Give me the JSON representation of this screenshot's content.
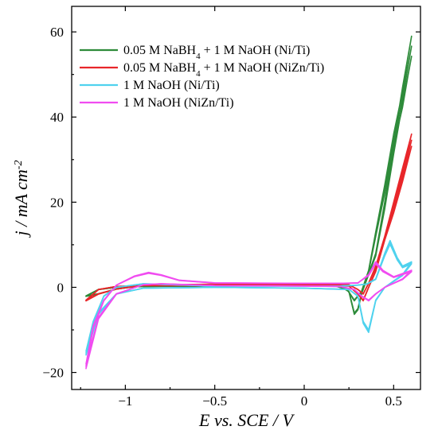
{
  "chart_data": {
    "type": "line",
    "title": "",
    "xlabel": "E vs. SCE / V",
    "ylabel": "j / mA cm",
    "ylabel_sup": "-2",
    "xlim": [
      -1.3,
      0.65
    ],
    "ylim": [
      -24,
      66
    ],
    "x_ticks": [
      -1,
      -0.5,
      0,
      0.5
    ],
    "x_tick_labels": [
      "−1",
      "−0.5",
      "0",
      "0.5"
    ],
    "y_ticks": [
      -20,
      0,
      20,
      40,
      60
    ],
    "y_tick_labels": [
      "−20",
      "0",
      "20",
      "40",
      "60"
    ],
    "grid": false,
    "legend_placement": "top-left",
    "series": [
      {
        "name": "0.05 M NaBH4 + 1 M NaOH (Ni/Ti)",
        "legend_parts": [
          "0.05 M NaBH",
          "4",
          " + 1 M NaOH (Ni/Ti)"
        ],
        "color": "#2e8b3a",
        "forward": [
          [
            -1.22,
            -2
          ],
          [
            -1.15,
            -0.5
          ],
          [
            -1.05,
            0
          ],
          [
            -0.9,
            0.2
          ],
          [
            -0.5,
            0.3
          ],
          [
            0,
            0.4
          ],
          [
            0.2,
            0.3
          ],
          [
            0.25,
            -1
          ],
          [
            0.28,
            -6
          ],
          [
            0.3,
            -5
          ],
          [
            0.32,
            -1.5
          ],
          [
            0.35,
            2
          ],
          [
            0.4,
            8
          ],
          [
            0.45,
            20
          ],
          [
            0.5,
            34
          ],
          [
            0.55,
            47
          ],
          [
            0.6,
            59
          ]
        ],
        "backward": [
          [
            0.6,
            59
          ],
          [
            0.58,
            54
          ],
          [
            0.55,
            46
          ],
          [
            0.5,
            36
          ],
          [
            0.45,
            24
          ],
          [
            0.4,
            13
          ],
          [
            0.36,
            4
          ],
          [
            0.32,
            -1
          ],
          [
            0.28,
            -3
          ],
          [
            0.24,
            -0.5
          ],
          [
            0.15,
            0.6
          ],
          [
            -0.5,
            0.6
          ],
          [
            -0.9,
            0.4
          ],
          [
            -1.05,
            -0.4
          ],
          [
            -1.15,
            -1.5
          ],
          [
            -1.22,
            -2
          ]
        ]
      },
      {
        "name": "0.05 M NaBH4 + 1 M NaOH (NiZn/Ti)",
        "legend_parts": [
          "0.05 M NaBH",
          "4",
          " + 1 M NaOH (NiZn/Ti)"
        ],
        "color": "#e8262a",
        "forward": [
          [
            -1.22,
            -3
          ],
          [
            -1.15,
            -0.5
          ],
          [
            -1.05,
            0.2
          ],
          [
            -0.9,
            0.4
          ],
          [
            -0.5,
            0.4
          ],
          [
            0,
            0.4
          ],
          [
            0.25,
            0.3
          ],
          [
            0.3,
            -1.5
          ],
          [
            0.33,
            -3
          ],
          [
            0.36,
            0
          ],
          [
            0.4,
            4
          ],
          [
            0.45,
            12
          ],
          [
            0.5,
            20
          ],
          [
            0.55,
            28
          ],
          [
            0.6,
            36
          ]
        ],
        "backward": [
          [
            0.6,
            36
          ],
          [
            0.55,
            27
          ],
          [
            0.5,
            19
          ],
          [
            0.45,
            12
          ],
          [
            0.4,
            5
          ],
          [
            0.36,
            1
          ],
          [
            0.33,
            -1.5
          ],
          [
            0.3,
            -0.5
          ],
          [
            0.25,
            0.6
          ],
          [
            0,
            0.7
          ],
          [
            -0.5,
            0.7
          ],
          [
            -0.9,
            0.5
          ],
          [
            -1.05,
            -0.4
          ],
          [
            -1.15,
            -1.5
          ],
          [
            -1.22,
            -3
          ]
        ]
      },
      {
        "name": "1 M NaOH (Ni/Ti)",
        "legend_parts": [
          "1 M NaOH (Ni/Ti)"
        ],
        "color": "#4fd2ee",
        "forward": [
          [
            -1.22,
            -15
          ],
          [
            -1.18,
            -8
          ],
          [
            -1.12,
            -2
          ],
          [
            -1.05,
            0
          ],
          [
            -0.9,
            0.8
          ],
          [
            -0.5,
            0.3
          ],
          [
            0,
            0.3
          ],
          [
            0.2,
            0.3
          ],
          [
            0.3,
            0.5
          ],
          [
            0.35,
            0.8
          ],
          [
            0.4,
            2
          ],
          [
            0.45,
            8
          ],
          [
            0.48,
            11
          ],
          [
            0.52,
            7
          ],
          [
            0.55,
            5
          ],
          [
            0.6,
            6
          ]
        ],
        "backward": [
          [
            0.6,
            5.5
          ],
          [
            0.55,
            3
          ],
          [
            0.5,
            1.5
          ],
          [
            0.45,
            0
          ],
          [
            0.4,
            -3
          ],
          [
            0.36,
            -10
          ],
          [
            0.33,
            -8
          ],
          [
            0.3,
            -2
          ],
          [
            0.25,
            -0.5
          ],
          [
            0,
            -0.2
          ],
          [
            -0.5,
            0
          ],
          [
            -0.9,
            -0.2
          ],
          [
            -1.05,
            -1.5
          ],
          [
            -1.15,
            -6
          ],
          [
            -1.22,
            -15
          ]
        ]
      },
      {
        "name": "1 M NaOH (NiZn/Ti)",
        "legend_parts": [
          "1 M NaOH (NiZn/Ti)"
        ],
        "color": "#f04cf0",
        "forward": [
          [
            -1.22,
            -18
          ],
          [
            -1.18,
            -9
          ],
          [
            -1.12,
            -3
          ],
          [
            -1.05,
            0.5
          ],
          [
            -0.95,
            2.5
          ],
          [
            -0.87,
            3.3
          ],
          [
            -0.8,
            2.8
          ],
          [
            -0.7,
            1.6
          ],
          [
            -0.5,
            1
          ],
          [
            0,
            0.9
          ],
          [
            0.2,
            0.9
          ],
          [
            0.3,
            1
          ],
          [
            0.36,
            3
          ],
          [
            0.4,
            6
          ],
          [
            0.44,
            4
          ],
          [
            0.5,
            2.5
          ],
          [
            0.6,
            4
          ]
        ],
        "backward": [
          [
            0.6,
            3.5
          ],
          [
            0.55,
            2
          ],
          [
            0.5,
            1
          ],
          [
            0.45,
            0
          ],
          [
            0.4,
            -1.5
          ],
          [
            0.36,
            -3
          ],
          [
            0.32,
            -2
          ],
          [
            0.28,
            -0.5
          ],
          [
            0.2,
            0.2
          ],
          [
            0,
            0.3
          ],
          [
            -0.5,
            0.4
          ],
          [
            -0.8,
            0.8
          ],
          [
            -0.9,
            0.6
          ],
          [
            -1.05,
            -1.5
          ],
          [
            -1.15,
            -7
          ],
          [
            -1.22,
            -18
          ]
        ]
      }
    ]
  }
}
